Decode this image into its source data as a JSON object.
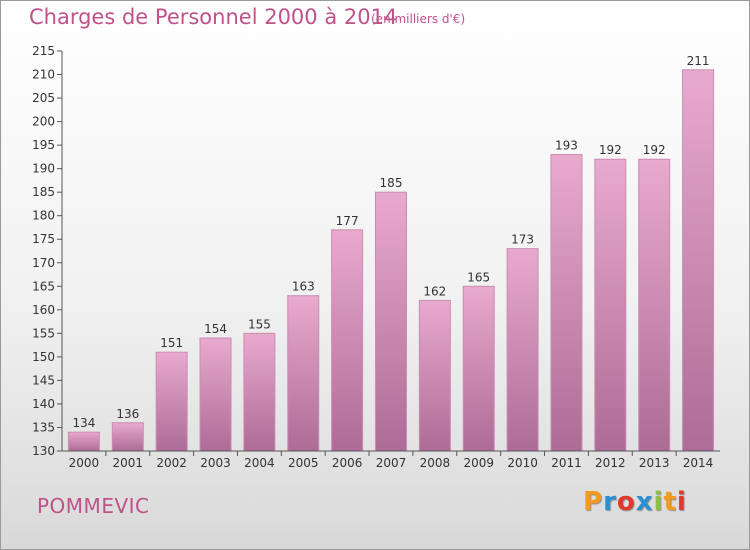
{
  "header": {
    "title": "Charges de Personnel 2000 à 2014",
    "subtitle": "(en milliers d'€)"
  },
  "footer": {
    "place": "POMMEVIC",
    "logo": "Proxiti"
  },
  "colors": {
    "title": "#c0528a",
    "bar_light": "#e8aacd",
    "bar_dark": "#ad6c96",
    "axis": "#555555",
    "tick_text": "#333333"
  },
  "chart_data": {
    "type": "bar",
    "title": "Charges de Personnel 2000 à 2014",
    "subtitle": "(en milliers d'€)",
    "categories": [
      "2000",
      "2001",
      "2002",
      "2003",
      "2004",
      "2005",
      "2006",
      "2007",
      "2008",
      "2009",
      "2010",
      "2011",
      "2012",
      "2013",
      "2014"
    ],
    "values": [
      134,
      136,
      151,
      154,
      155,
      163,
      177,
      185,
      162,
      165,
      173,
      193,
      192,
      192,
      211
    ],
    "ylim": [
      130,
      215
    ],
    "yticks": [
      130,
      135,
      140,
      145,
      150,
      155,
      160,
      165,
      170,
      175,
      180,
      185,
      190,
      195,
      200,
      205,
      210,
      215
    ],
    "grid": false,
    "legend": "none"
  }
}
